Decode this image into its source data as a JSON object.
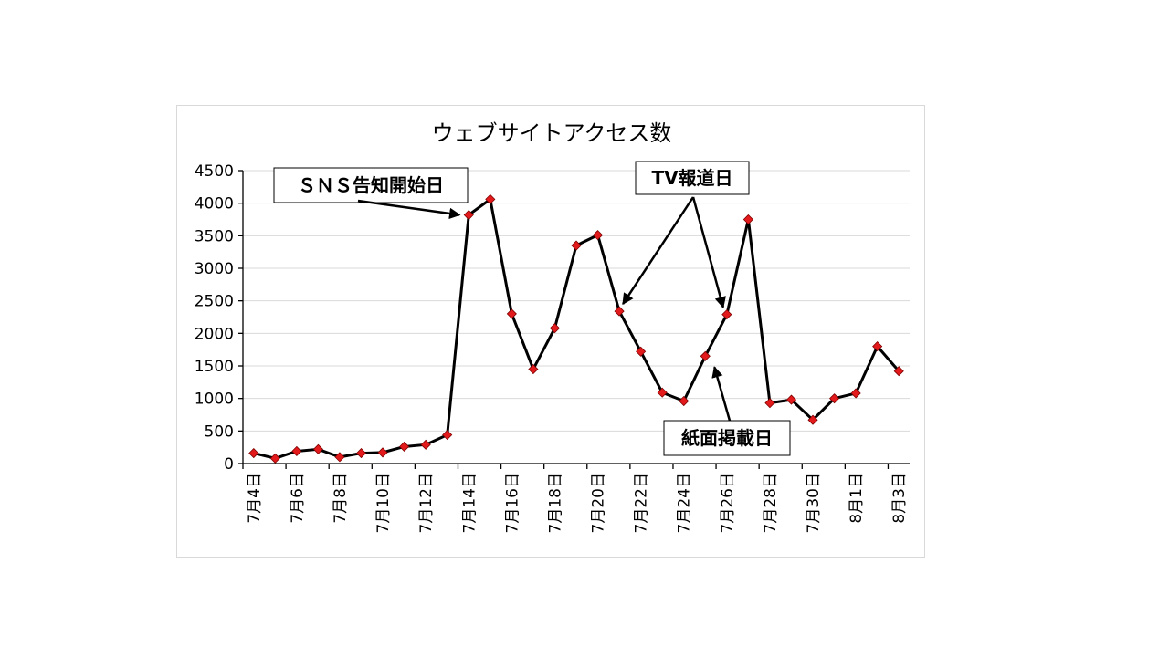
{
  "chart_data": {
    "type": "line",
    "title": "ウェブサイトアクセス数",
    "xlabel": "",
    "ylabel": "",
    "ylim": [
      0,
      4500
    ],
    "yticks": [
      0,
      500,
      1000,
      1500,
      2000,
      2500,
      3000,
      3500,
      4000,
      4500
    ],
    "grid": true,
    "categories": [
      "7月4日",
      "7月5日",
      "7月6日",
      "7月7日",
      "7月8日",
      "7月9日",
      "7月10日",
      "7月11日",
      "7月12日",
      "7月13日",
      "7月14日",
      "7月15日",
      "7月16日",
      "7月17日",
      "7月18日",
      "7月19日",
      "7月20日",
      "7月21日",
      "7月22日",
      "7月23日",
      "7月24日",
      "7月25日",
      "7月26日",
      "7月27日",
      "7月28日",
      "7月29日",
      "7月30日",
      "7月31日",
      "8月1日",
      "8月2日",
      "8月3日"
    ],
    "tick_labels": [
      "7月4日",
      "7月6日",
      "7月8日",
      "7月10日",
      "7月12日",
      "7月14日",
      "7月16日",
      "7月18日",
      "7月20日",
      "7月22日",
      "7月24日",
      "7月26日",
      "7月28日",
      "7月30日",
      "8月1日",
      "8月3日"
    ],
    "series": [
      {
        "values": [
          160,
          80,
          190,
          220,
          100,
          160,
          170,
          260,
          290,
          440,
          3820,
          4060,
          2300,
          1450,
          2080,
          3350,
          3510,
          2340,
          1720,
          1090,
          960,
          1650,
          2290,
          3750,
          930,
          980,
          670,
          1000,
          1080,
          1800,
          1420
        ],
        "color": "#000000",
        "marker_color": "#e31a1c"
      }
    ],
    "annotations": [
      {
        "id": "sns",
        "text": "ＳＮＳ告知開始日",
        "target_category": "7月14日"
      },
      {
        "id": "tv",
        "text": "TV報道日",
        "target_categories": [
          "7月21日",
          "7月26日"
        ]
      },
      {
        "id": "paper",
        "text": "紙面掲載日",
        "target_category": "7月25日"
      }
    ]
  }
}
